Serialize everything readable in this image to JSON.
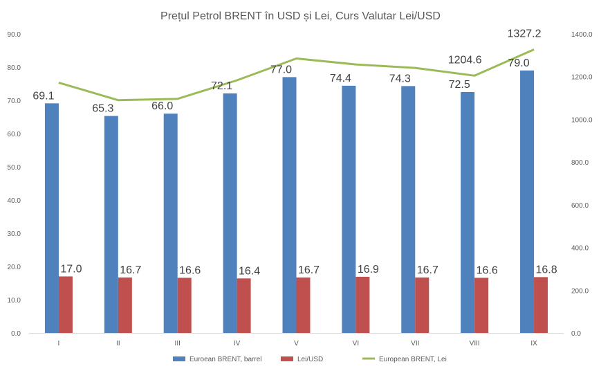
{
  "chart_data": {
    "type": "bar",
    "title": "Prețul Petrol BRENT în USD și Lei, Curs Valutar Lei/USD",
    "categories": [
      "I",
      "II",
      "III",
      "IV",
      "V",
      "VI",
      "VII",
      "VIII",
      "IX"
    ],
    "y_left": {
      "range": [
        0,
        90
      ],
      "ticks": [
        "0.0",
        "10.0",
        "20.0",
        "30.0",
        "40.0",
        "50.0",
        "60.0",
        "70.0",
        "80.0",
        "90.0"
      ]
    },
    "y_right": {
      "range": [
        0,
        1400
      ],
      "ticks": [
        "0.0",
        "200.0",
        "400.0",
        "600.0",
        "800.0",
        "1000.0",
        "1200.0",
        "1400.0"
      ]
    },
    "series": [
      {
        "name": "Euroean BRENT, barrel",
        "type": "bar",
        "axis": "left",
        "color": "#4f81bd",
        "values": [
          69.1,
          65.3,
          66.0,
          72.1,
          77.0,
          74.4,
          74.3,
          72.5,
          79.0
        ],
        "labels": [
          "69.1",
          "65.3",
          "66.0",
          "72.1",
          "77.0",
          "74.4",
          "74.3",
          "72.5",
          "79.0"
        ]
      },
      {
        "name": "Lei/USD",
        "type": "bar",
        "axis": "left",
        "color": "#c0504d",
        "values": [
          17.0,
          16.7,
          16.6,
          16.4,
          16.7,
          16.9,
          16.7,
          16.6,
          16.8
        ],
        "labels": [
          "17.0",
          "16.7",
          "16.6",
          "16.4",
          "16.7",
          "16.9",
          "16.7",
          "16.6",
          "16.8"
        ]
      },
      {
        "name": "European BRENT, Lei",
        "type": "line",
        "axis": "right",
        "color": "#9bbb59",
        "values": [
          1172,
          1090,
          1096,
          1183,
          1285,
          1257,
          1241,
          1204.6,
          1327.2
        ],
        "labels": [
          "",
          "",
          "",
          "",
          "",
          "",
          "",
          "1204.6",
          "1327.2"
        ]
      }
    ],
    "legend_position": "bottom",
    "grid": false
  }
}
